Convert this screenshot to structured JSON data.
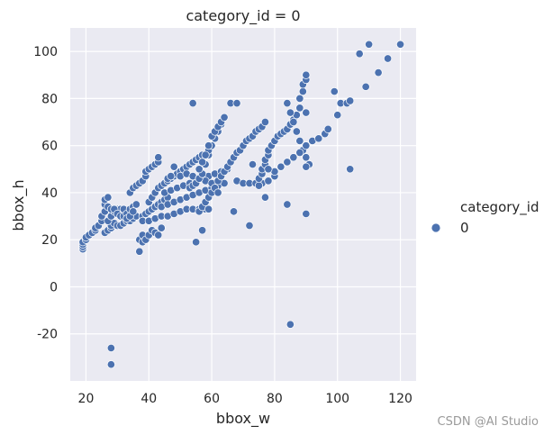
{
  "chart_data": {
    "type": "scatter",
    "title": "category_id = 0",
    "xlabel": "bbox_w",
    "ylabel": "bbox_h",
    "xlim": [
      15,
      125
    ],
    "ylim": [
      -40,
      110
    ],
    "xticks": [
      20,
      40,
      60,
      80,
      100,
      120
    ],
    "yticks": [
      -20,
      0,
      20,
      40,
      60,
      80,
      100
    ],
    "grid": true,
    "legend": {
      "title": "category_id",
      "entries": [
        "0"
      ],
      "position": "right"
    },
    "series": [
      {
        "name": "0",
        "color": "#4c72b0",
        "points": [
          [
            19,
            16
          ],
          [
            19,
            17
          ],
          [
            19,
            18
          ],
          [
            19,
            19
          ],
          [
            20,
            20
          ],
          [
            20,
            21
          ],
          [
            21,
            22
          ],
          [
            22,
            23
          ],
          [
            23,
            24
          ],
          [
            23,
            25
          ],
          [
            24,
            26
          ],
          [
            25,
            28
          ],
          [
            25,
            30
          ],
          [
            26,
            32
          ],
          [
            26,
            35
          ],
          [
            26,
            37
          ],
          [
            27,
            38
          ],
          [
            26,
            23
          ],
          [
            27,
            24
          ],
          [
            28,
            25
          ],
          [
            28,
            26
          ],
          [
            29,
            27
          ],
          [
            30,
            26
          ],
          [
            31,
            26
          ],
          [
            32,
            27
          ],
          [
            33,
            28
          ],
          [
            34,
            28
          ],
          [
            35,
            29
          ],
          [
            36,
            30
          ],
          [
            27,
            28
          ],
          [
            28,
            30
          ],
          [
            29,
            32
          ],
          [
            30,
            33
          ],
          [
            31,
            33
          ],
          [
            32,
            33
          ],
          [
            27,
            34
          ],
          [
            28,
            33
          ],
          [
            29,
            33
          ],
          [
            30,
            31
          ],
          [
            31,
            30
          ],
          [
            32,
            30
          ],
          [
            33,
            31
          ],
          [
            34,
            33
          ],
          [
            35,
            34
          ],
          [
            36,
            35
          ],
          [
            33,
            29
          ],
          [
            34,
            30
          ],
          [
            35,
            32
          ],
          [
            34,
            40
          ],
          [
            35,
            42
          ],
          [
            36,
            43
          ],
          [
            37,
            44
          ],
          [
            38,
            45
          ],
          [
            39,
            47
          ],
          [
            39,
            49
          ],
          [
            40,
            50
          ],
          [
            41,
            51
          ],
          [
            42,
            52
          ],
          [
            43,
            53
          ],
          [
            43,
            55
          ],
          [
            37,
            15
          ],
          [
            37,
            20
          ],
          [
            38,
            19
          ],
          [
            38,
            22
          ],
          [
            39,
            20
          ],
          [
            40,
            22
          ],
          [
            41,
            24
          ],
          [
            42,
            23
          ],
          [
            43,
            22
          ],
          [
            44,
            25
          ],
          [
            38,
            30
          ],
          [
            39,
            31
          ],
          [
            40,
            32
          ],
          [
            41,
            33
          ],
          [
            42,
            34
          ],
          [
            43,
            35
          ],
          [
            44,
            36
          ],
          [
            45,
            37
          ],
          [
            46,
            38
          ],
          [
            38,
            28
          ],
          [
            40,
            28
          ],
          [
            42,
            29
          ],
          [
            44,
            30
          ],
          [
            46,
            30
          ],
          [
            48,
            31
          ],
          [
            50,
            32
          ],
          [
            52,
            33
          ],
          [
            54,
            33
          ],
          [
            56,
            33
          ],
          [
            58,
            33
          ],
          [
            40,
            36
          ],
          [
            41,
            38
          ],
          [
            42,
            40
          ],
          [
            43,
            42
          ],
          [
            44,
            43
          ],
          [
            45,
            44
          ],
          [
            46,
            45
          ],
          [
            47,
            46
          ],
          [
            48,
            47
          ],
          [
            49,
            48
          ],
          [
            50,
            49
          ],
          [
            51,
            50
          ],
          [
            52,
            51
          ],
          [
            53,
            52
          ],
          [
            54,
            53
          ],
          [
            55,
            54
          ],
          [
            56,
            55
          ],
          [
            57,
            56
          ],
          [
            44,
            34
          ],
          [
            46,
            35
          ],
          [
            48,
            36
          ],
          [
            50,
            37
          ],
          [
            52,
            38
          ],
          [
            54,
            39
          ],
          [
            56,
            40
          ],
          [
            58,
            41
          ],
          [
            60,
            42
          ],
          [
            62,
            43
          ],
          [
            64,
            44
          ],
          [
            45,
            40
          ],
          [
            47,
            41
          ],
          [
            49,
            42
          ],
          [
            51,
            43
          ],
          [
            53,
            44
          ],
          [
            55,
            45
          ],
          [
            57,
            46
          ],
          [
            59,
            47
          ],
          [
            61,
            48
          ],
          [
            63,
            49
          ],
          [
            65,
            50
          ],
          [
            46,
            46
          ],
          [
            47,
            47
          ],
          [
            48,
            51
          ],
          [
            50,
            47
          ],
          [
            52,
            48
          ],
          [
            54,
            47
          ],
          [
            56,
            46
          ],
          [
            58,
            45
          ],
          [
            53,
            42
          ],
          [
            54,
            43
          ],
          [
            55,
            44
          ],
          [
            56,
            46
          ],
          [
            57,
            48
          ],
          [
            58,
            52
          ],
          [
            59,
            56
          ],
          [
            59,
            58
          ],
          [
            60,
            60
          ],
          [
            61,
            63
          ],
          [
            62,
            66
          ],
          [
            63,
            69
          ],
          [
            56,
            50
          ],
          [
            57,
            53
          ],
          [
            58,
            56
          ],
          [
            59,
            60
          ],
          [
            60,
            64
          ],
          [
            61,
            66
          ],
          [
            62,
            68
          ],
          [
            63,
            70
          ],
          [
            64,
            72
          ],
          [
            56,
            32
          ],
          [
            57,
            34
          ],
          [
            58,
            36
          ],
          [
            59,
            38
          ],
          [
            60,
            40
          ],
          [
            60,
            44
          ],
          [
            61,
            42
          ],
          [
            62,
            40
          ],
          [
            54,
            78
          ],
          [
            55,
            19
          ],
          [
            57,
            24
          ],
          [
            59,
            33
          ],
          [
            62,
            45
          ],
          [
            63,
            47
          ],
          [
            64,
            49
          ],
          [
            65,
            51
          ],
          [
            66,
            53
          ],
          [
            67,
            55
          ],
          [
            68,
            57
          ],
          [
            69,
            58
          ],
          [
            70,
            60
          ],
          [
            71,
            62
          ],
          [
            72,
            63
          ],
          [
            73,
            64
          ],
          [
            74,
            66
          ],
          [
            75,
            67
          ],
          [
            76,
            68
          ],
          [
            77,
            70
          ],
          [
            66,
            78
          ],
          [
            68,
            78
          ],
          [
            67,
            32
          ],
          [
            72,
            26
          ],
          [
            68,
            45
          ],
          [
            70,
            44
          ],
          [
            72,
            44
          ],
          [
            74,
            44
          ],
          [
            76,
            44
          ],
          [
            78,
            45
          ],
          [
            80,
            47
          ],
          [
            75,
            43
          ],
          [
            75,
            46
          ],
          [
            76,
            48
          ],
          [
            76,
            50
          ],
          [
            77,
            52
          ],
          [
            77,
            54
          ],
          [
            78,
            56
          ],
          [
            78,
            58
          ],
          [
            79,
            60
          ],
          [
            80,
            62
          ],
          [
            81,
            64
          ],
          [
            82,
            65
          ],
          [
            83,
            66
          ],
          [
            84,
            67
          ],
          [
            85,
            69
          ],
          [
            86,
            71
          ],
          [
            87,
            73
          ],
          [
            88,
            76
          ],
          [
            88,
            80
          ],
          [
            89,
            83
          ],
          [
            89,
            86
          ],
          [
            90,
            88
          ],
          [
            90,
            90
          ],
          [
            84,
            78
          ],
          [
            85,
            74
          ],
          [
            86,
            70
          ],
          [
            87,
            66
          ],
          [
            88,
            62
          ],
          [
            89,
            58
          ],
          [
            90,
            55
          ],
          [
            91,
            52
          ],
          [
            80,
            49
          ],
          [
            82,
            51
          ],
          [
            84,
            53
          ],
          [
            86,
            55
          ],
          [
            88,
            57
          ],
          [
            90,
            60
          ],
          [
            92,
            62
          ],
          [
            94,
            63
          ],
          [
            84,
            35
          ],
          [
            85,
            -16
          ],
          [
            90,
            31
          ],
          [
            90,
            51
          ],
          [
            90,
            74
          ],
          [
            96,
            65
          ],
          [
            97,
            67
          ],
          [
            99,
            83
          ],
          [
            100,
            73
          ],
          [
            101,
            78
          ],
          [
            103,
            78
          ],
          [
            104,
            50
          ],
          [
            104,
            79
          ],
          [
            107,
            99
          ],
          [
            109,
            85
          ],
          [
            110,
            103
          ],
          [
            113,
            91
          ],
          [
            116,
            97
          ],
          [
            120,
            103
          ],
          [
            28,
            -26
          ],
          [
            28,
            -33
          ],
          [
            77,
            38
          ],
          [
            73,
            52
          ],
          [
            78,
            50
          ]
        ]
      }
    ]
  },
  "watermark": "CSDN @AI Studio"
}
